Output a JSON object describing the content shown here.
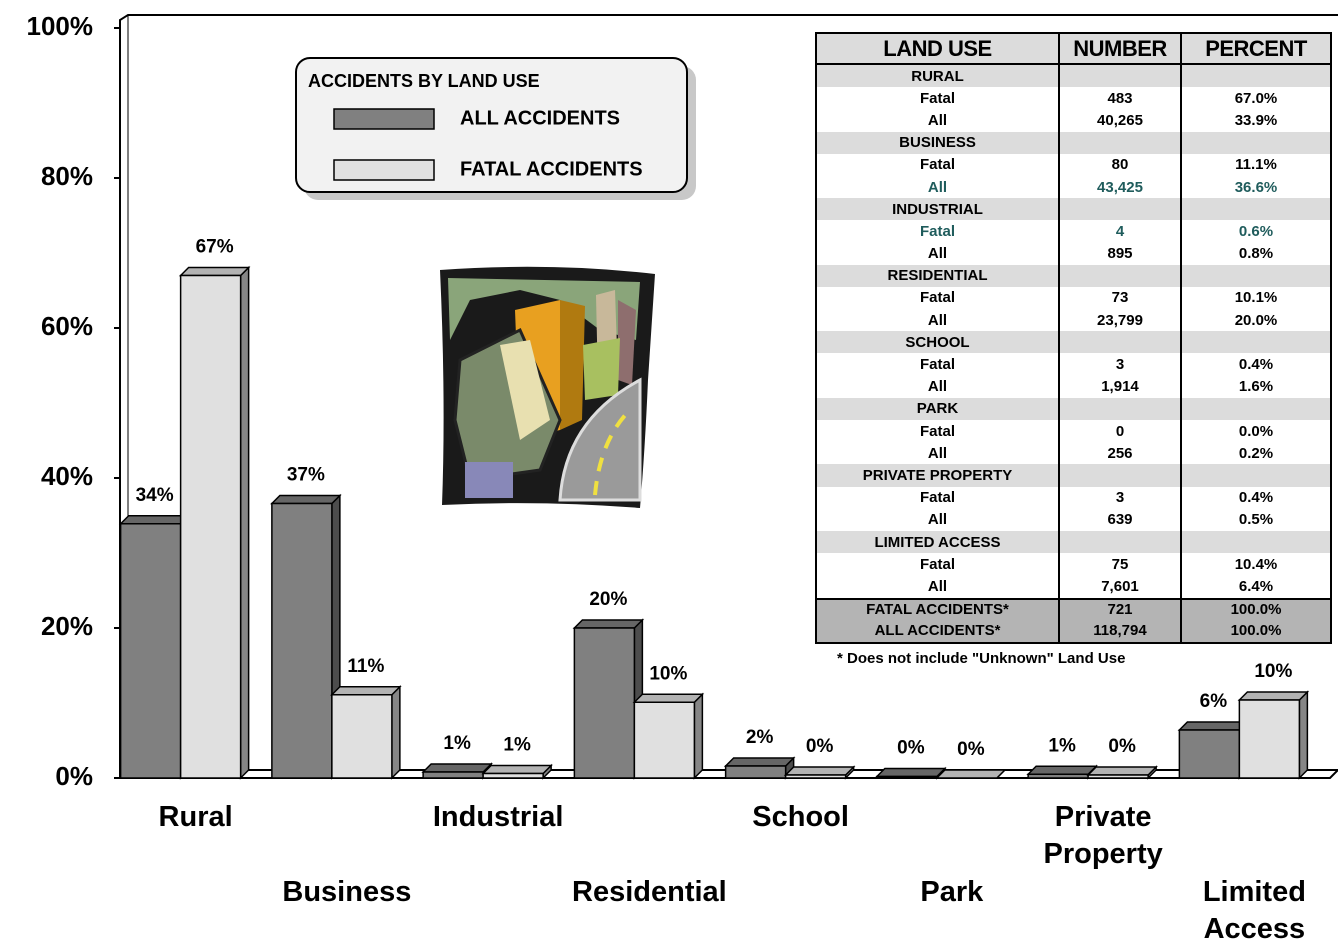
{
  "chart_data": {
    "type": "bar",
    "categories": [
      "Rural",
      "Business",
      "Industrial",
      "Residential",
      "School",
      "Park",
      "Private Property",
      "Limited Access"
    ],
    "series": [
      {
        "name": "ALL ACCIDENTS",
        "color": "#808080",
        "values": [
          33.9,
          36.6,
          0.8,
          20.0,
          1.6,
          0.2,
          0.5,
          6.4
        ],
        "value_labels": [
          "34%",
          "37%",
          "1%",
          "20%",
          "2%",
          "0%",
          "1%",
          "6%"
        ]
      },
      {
        "name": "FATAL ACCIDENTS",
        "color": "#e0e0e0",
        "values": [
          67.0,
          11.1,
          0.6,
          10.1,
          0.4,
          0.0,
          0.4,
          10.4
        ],
        "value_labels": [
          "67%",
          "11%",
          "1%",
          "10%",
          "0%",
          "0%",
          "0%",
          "10%"
        ]
      }
    ],
    "legend_title": "ACCIDENTS BY LAND USE",
    "ylim": [
      0,
      100
    ],
    "yticks": [
      {
        "value": 0,
        "label": "0%"
      },
      {
        "value": 20,
        "label": "20%"
      },
      {
        "value": 40,
        "label": "40%"
      },
      {
        "value": 60,
        "label": "60%"
      },
      {
        "value": 80,
        "label": "80%"
      },
      {
        "value": 100,
        "label": "100%"
      }
    ]
  },
  "table": {
    "header": [
      "LAND USE",
      "NUMBER",
      "PERCENT"
    ],
    "groups": [
      {
        "name": "RURAL",
        "rows": [
          {
            "cells": [
              "Fatal",
              "483",
              "67.0%"
            ]
          },
          {
            "cells": [
              "All",
              "40,265",
              "33.9%"
            ]
          }
        ]
      },
      {
        "name": "BUSINESS",
        "rows": [
          {
            "cells": [
              "Fatal",
              "80",
              "11.1%"
            ]
          },
          {
            "cells": [
              "All",
              "43,425",
              "36.6%"
            ],
            "color": "#1f5c5c"
          }
        ]
      },
      {
        "name": "INDUSTRIAL",
        "rows": [
          {
            "cells": [
              "Fatal",
              "4",
              "0.6%"
            ],
            "color": "#1f5c5c"
          },
          {
            "cells": [
              "All",
              "895",
              "0.8%"
            ]
          }
        ]
      },
      {
        "name": "RESIDENTIAL",
        "rows": [
          {
            "cells": [
              "Fatal",
              "73",
              "10.1%"
            ]
          },
          {
            "cells": [
              "All",
              "23,799",
              "20.0%"
            ]
          }
        ]
      },
      {
        "name": "SCHOOL",
        "rows": [
          {
            "cells": [
              "Fatal",
              "3",
              "0.4%"
            ]
          },
          {
            "cells": [
              "All",
              "1,914",
              "1.6%"
            ]
          }
        ]
      },
      {
        "name": "PARK",
        "rows": [
          {
            "cells": [
              "Fatal",
              "0",
              "0.0%"
            ]
          },
          {
            "cells": [
              "All",
              "256",
              "0.2%"
            ]
          }
        ]
      },
      {
        "name": "PRIVATE PROPERTY",
        "rows": [
          {
            "cells": [
              "Fatal",
              "3",
              "0.4%"
            ]
          },
          {
            "cells": [
              "All",
              "639",
              "0.5%"
            ]
          }
        ]
      },
      {
        "name": "LIMITED ACCESS",
        "rows": [
          {
            "cells": [
              "Fatal",
              "75",
              "10.4%"
            ]
          },
          {
            "cells": [
              "All",
              "7,601",
              "6.4%"
            ]
          }
        ]
      }
    ],
    "totals": [
      [
        "FATAL ACCIDENTS*",
        "721",
        "100.0%"
      ],
      [
        "ALL ACCIDENTS*",
        "118,794",
        "100.0%"
      ]
    ],
    "note": "* Does not include \"Unknown\" Land Use"
  }
}
